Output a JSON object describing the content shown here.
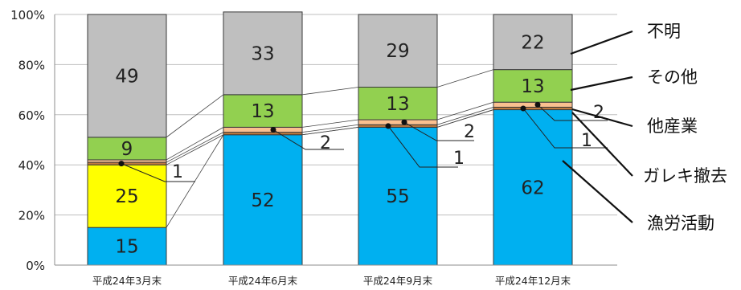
{
  "chart_data": {
    "type": "bar",
    "stacked": true,
    "percent": true,
    "ylim": [
      0,
      100
    ],
    "yticks": [
      "0%",
      "20%",
      "40%",
      "60%",
      "80%",
      "100%"
    ],
    "grid": true,
    "categories": [
      "平成24年3月末",
      "平成24年6月末",
      "平成24年9月末",
      "平成24年12月末"
    ],
    "series": [
      {
        "key": "fishing",
        "name": "漁労活動",
        "color": "#00B0F0",
        "values": [
          15,
          52,
          55,
          62
        ],
        "labels": [
          "15",
          "52",
          "55",
          "62"
        ]
      },
      {
        "key": "yellow",
        "color": "#FFFF00",
        "values": [
          25,
          0,
          0,
          0
        ],
        "labels": [
          "25",
          "",
          "",
          ""
        ]
      },
      {
        "key": "rubble",
        "name": "ガレキ撤去",
        "color": "#C07A3E",
        "values": [
          1,
          1,
          1,
          1
        ],
        "labels": [
          "1",
          "",
          "1",
          "1"
        ]
      },
      {
        "key": "other_industry",
        "name": "他産業",
        "color": "#FAC090",
        "values": [
          1,
          2,
          2,
          2
        ],
        "labels": [
          "",
          "2",
          "2",
          "2"
        ]
      },
      {
        "key": "other",
        "name": "その他",
        "color": "#92D050",
        "values": [
          9,
          13,
          13,
          13
        ],
        "labels": [
          "9",
          "13",
          "13",
          "13"
        ]
      },
      {
        "key": "unknown",
        "name": "不明",
        "color": "#BFBFBF",
        "values": [
          49,
          33,
          29,
          22
        ],
        "labels": [
          "49",
          "33",
          "29",
          "22"
        ]
      }
    ]
  }
}
